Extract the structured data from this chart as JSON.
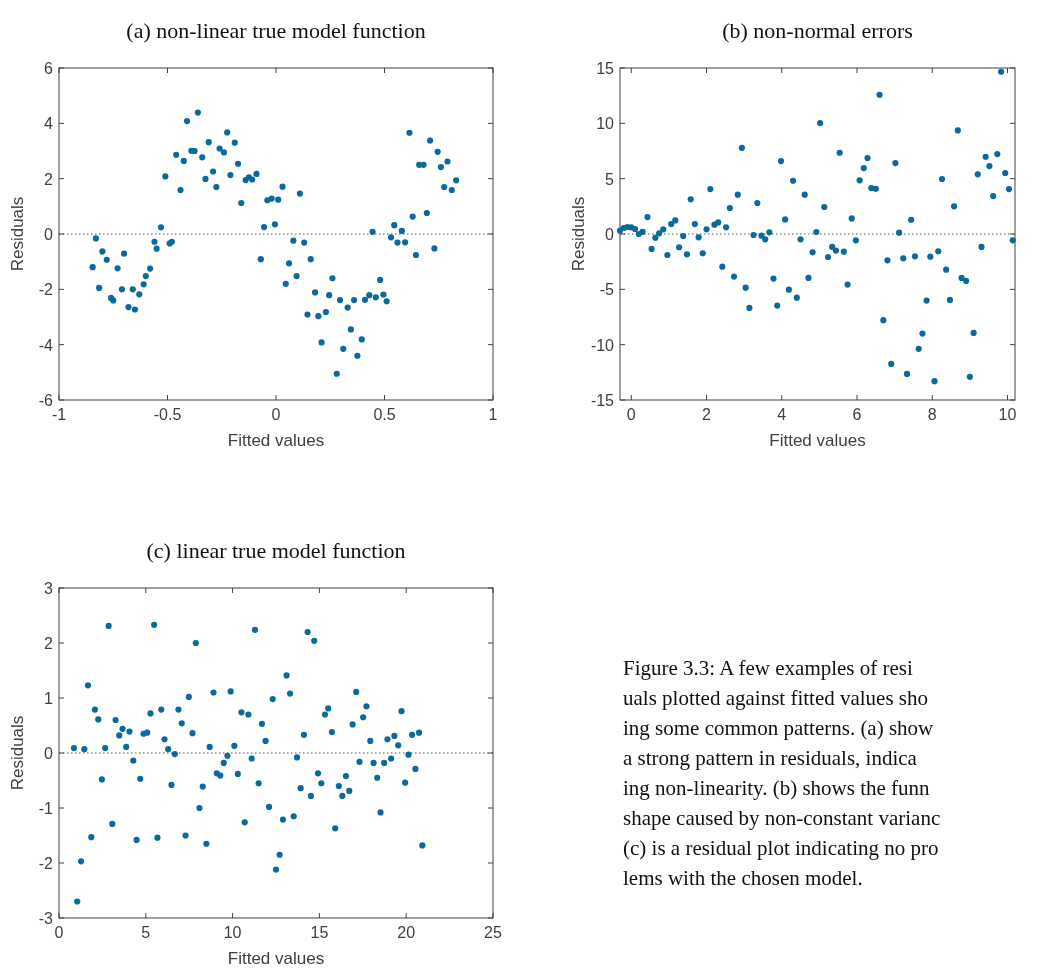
{
  "chart_data": [
    {
      "type": "scatter",
      "title": "(a) non-linear true model function",
      "xlabel": "Fitted values",
      "ylabel": "Residuals",
      "color": "#0b6a9a",
      "marker": "circle",
      "xlim": [
        -1,
        1
      ],
      "ylim": [
        -6,
        6
      ],
      "xticks": [
        -1,
        -0.5,
        0,
        0.5,
        1
      ],
      "yticks": [
        -6,
        -4,
        -2,
        0,
        2,
        4,
        6
      ],
      "ref_lines": [
        {
          "axis": "y",
          "value": 0,
          "line_style": "dotted",
          "color": "#555555"
        }
      ],
      "x": [
        -0.845,
        -0.83,
        -0.815,
        -0.8,
        -0.78,
        -0.76,
        -0.75,
        -0.73,
        -0.71,
        -0.7,
        -0.68,
        -0.66,
        -0.65,
        -0.63,
        -0.61,
        -0.6,
        -0.58,
        -0.56,
        -0.55,
        -0.53,
        -0.51,
        -0.49,
        -0.48,
        -0.46,
        -0.44,
        -0.425,
        -0.41,
        -0.39,
        -0.375,
        -0.36,
        -0.34,
        -0.325,
        -0.31,
        -0.29,
        -0.275,
        -0.26,
        -0.24,
        -0.225,
        -0.21,
        -0.19,
        -0.175,
        -0.16,
        -0.14,
        -0.125,
        -0.11,
        -0.09,
        -0.07,
        -0.055,
        -0.04,
        -0.02,
        -0.005,
        0.01,
        0.03,
        0.045,
        0.06,
        0.08,
        0.095,
        0.11,
        0.13,
        0.145,
        0.16,
        0.18,
        0.195,
        0.21,
        0.23,
        0.245,
        0.26,
        0.28,
        0.295,
        0.31,
        0.33,
        0.345,
        0.36,
        0.375,
        0.395,
        0.41,
        0.43,
        0.445,
        0.46,
        0.48,
        0.495,
        0.51,
        0.53,
        0.545,
        0.56,
        0.58,
        0.595,
        0.615,
        0.63,
        0.645,
        0.66,
        0.68,
        0.695,
        0.71,
        0.73,
        0.745,
        0.76,
        0.775,
        0.79,
        0.81,
        0.83
      ],
      "values": [
        -1.2,
        -0.16,
        -1.95,
        -0.63,
        -0.93,
        -2.31,
        -2.4,
        -1.24,
        -2.0,
        -0.71,
        -2.64,
        -2.0,
        -2.73,
        -2.18,
        -1.82,
        -1.52,
        -1.25,
        -0.28,
        -0.53,
        0.24,
        2.08,
        -0.34,
        -0.28,
        2.86,
        1.59,
        2.64,
        4.08,
        3.01,
        3.0,
        4.39,
        2.77,
        1.99,
        3.32,
        2.26,
        1.7,
        3.09,
        2.95,
        3.67,
        2.13,
        3.3,
        2.54,
        1.12,
        1.95,
        2.05,
        1.97,
        2.17,
        -0.91,
        0.25,
        1.22,
        1.28,
        0.35,
        1.24,
        1.71,
        -1.8,
        -1.06,
        -0.24,
        -1.52,
        1.46,
        -0.31,
        -2.91,
        -0.91,
        -2.11,
        -2.97,
        -3.92,
        -2.82,
        -2.21,
        -1.6,
        -5.05,
        -2.39,
        -4.15,
        -2.66,
        -3.45,
        -2.39,
        -4.4,
        -3.81,
        -2.38,
        -2.21,
        0.08,
        -2.29,
        -1.66,
        -2.19,
        -2.43,
        -0.12,
        0.32,
        -0.31,
        0.11,
        -0.3,
        3.66,
        0.63,
        -0.76,
        2.5,
        2.5,
        0.76,
        3.38,
        -0.52,
        2.97,
        2.42,
        1.7,
        2.62,
        1.59,
        1.94
      ]
    },
    {
      "type": "scatter",
      "title": "(b) non-normal errors",
      "xlabel": "Fitted values",
      "ylabel": "Residuals",
      "color": "#0b6a9a",
      "marker": "circle",
      "xlim": [
        -0.3,
        10.2
      ],
      "ylim": [
        -15,
        15
      ],
      "xticks": [
        0,
        2,
        4,
        6,
        8,
        10
      ],
      "yticks": [
        -15,
        -10,
        -5,
        0,
        5,
        10,
        15
      ],
      "ref_lines": [
        {
          "axis": "y",
          "value": 0,
          "line_style": "dotted",
          "color": "#555555"
        }
      ],
      "x": [
        -0.3,
        -0.2,
        -0.1,
        0.0,
        0.1,
        0.2,
        0.3,
        0.43,
        0.54,
        0.64,
        0.74,
        0.85,
        0.96,
        1.06,
        1.17,
        1.27,
        1.38,
        1.48,
        1.58,
        1.69,
        1.79,
        1.9,
        2.0,
        2.1,
        2.21,
        2.31,
        2.42,
        2.52,
        2.62,
        2.73,
        2.83,
        2.94,
        3.04,
        3.14,
        3.25,
        3.35,
        3.46,
        3.56,
        3.67,
        3.78,
        3.88,
        3.98,
        4.09,
        4.19,
        4.3,
        4.4,
        4.5,
        4.61,
        4.71,
        4.82,
        4.92,
        5.02,
        5.13,
        5.23,
        5.34,
        5.44,
        5.54,
        5.65,
        5.75,
        5.86,
        5.97,
        6.07,
        6.18,
        6.28,
        6.38,
        6.5,
        6.6,
        6.7,
        6.81,
        6.91,
        7.02,
        7.12,
        7.23,
        7.33,
        7.44,
        7.54,
        7.64,
        7.74,
        7.85,
        7.95,
        8.06,
        8.16,
        8.26,
        8.37,
        8.47,
        8.58,
        8.68,
        8.78,
        8.9,
        9.0,
        9.1,
        9.21,
        9.31,
        9.42,
        9.52,
        9.62,
        9.73,
        9.83,
        9.94,
        10.04,
        10.14
      ],
      "values": [
        0.3,
        0.54,
        0.63,
        0.6,
        0.45,
        0.0,
        0.2,
        1.53,
        -1.35,
        -0.33,
        0.06,
        0.42,
        -1.9,
        0.9,
        1.23,
        -1.2,
        -0.18,
        -1.84,
        3.13,
        0.9,
        -0.3,
        -1.75,
        0.42,
        4.06,
        0.84,
        1.05,
        -2.95,
        0.6,
        2.35,
        -3.85,
        3.55,
        7.79,
        -4.85,
        -6.68,
        -0.09,
        2.8,
        -0.15,
        -0.48,
        0.15,
        -4.03,
        -6.47,
        6.59,
        1.32,
        -5.03,
        4.81,
        -5.75,
        -0.48,
        3.55,
        -3.97,
        -1.66,
        0.18,
        10.02,
        2.44,
        -2.08,
        -1.17,
        -1.5,
        7.34,
        -1.6,
        -4.57,
        1.41,
        -0.57,
        4.85,
        5.96,
        6.86,
        4.15,
        4.09,
        12.58,
        -7.79,
        -2.38,
        -11.74,
        6.41,
        0.12,
        -2.2,
        -12.64,
        1.29,
        -2.02,
        -10.38,
        -9.0,
        -6.02,
        -2.05,
        -13.3,
        -1.56,
        4.97,
        -3.22,
        -5.96,
        2.5,
        9.36,
        -3.97,
        -4.24,
        -12.91,
        -8.94,
        5.39,
        -1.17,
        6.98,
        6.14,
        3.43,
        7.22,
        14.66,
        5.51,
        4.06,
        -0.57
      ]
    },
    {
      "type": "scatter",
      "title": "(c) linear true model function",
      "xlabel": "Fitted values",
      "ylabel": "Residuals",
      "color": "#0b6a9a",
      "marker": "circle",
      "xlim": [
        0,
        25
      ],
      "ylim": [
        -3,
        3
      ],
      "xticks": [
        0,
        5,
        10,
        15,
        20,
        25
      ],
      "yticks": [
        -3,
        -2,
        -1,
        0,
        1,
        2,
        3
      ],
      "ref_lines": [
        {
          "axis": "y",
          "value": 0,
          "line_style": "dotted",
          "color": "#555555"
        }
      ],
      "x": [
        0.86,
        1.05,
        1.27,
        1.46,
        1.67,
        1.86,
        2.07,
        2.26,
        2.47,
        2.66,
        2.86,
        3.07,
        3.26,
        3.47,
        3.66,
        3.87,
        4.06,
        4.28,
        4.47,
        4.68,
        4.87,
        5.08,
        5.27,
        5.48,
        5.67,
        5.89,
        6.08,
        6.29,
        6.48,
        6.67,
        6.88,
        7.07,
        7.29,
        7.48,
        7.69,
        7.88,
        8.09,
        8.28,
        8.49,
        8.68,
        8.9,
        9.09,
        9.29,
        9.49,
        9.7,
        9.89,
        10.1,
        10.3,
        10.51,
        10.7,
        10.91,
        11.1,
        11.29,
        11.5,
        11.69,
        11.9,
        12.1,
        12.31,
        12.5,
        12.71,
        12.9,
        13.11,
        13.31,
        13.52,
        13.71,
        13.92,
        14.11,
        14.32,
        14.51,
        14.7,
        14.92,
        15.11,
        15.32,
        15.51,
        15.72,
        15.91,
        16.12,
        16.32,
        16.53,
        16.72,
        16.91,
        17.12,
        17.31,
        17.52,
        17.71,
        17.93,
        18.12,
        18.33,
        18.52,
        18.73,
        18.92,
        19.13,
        19.32,
        19.54,
        19.73,
        19.94,
        20.13,
        20.34,
        20.53,
        20.74,
        20.93
      ],
      "values": [
        0.09,
        -2.7,
        -1.97,
        0.07,
        1.23,
        -1.53,
        0.79,
        0.61,
        -0.48,
        0.09,
        2.31,
        -1.29,
        0.6,
        0.32,
        0.44,
        0.11,
        0.39,
        -0.14,
        -1.58,
        -0.47,
        0.35,
        0.37,
        0.72,
        2.33,
        -1.54,
        0.79,
        0.25,
        0.07,
        -0.58,
        -0.02,
        0.79,
        0.54,
        -1.5,
        1.02,
        0.36,
        2.0,
        -1.0,
        -0.61,
        -1.65,
        0.11,
        1.1,
        -0.37,
        -0.41,
        -0.18,
        -0.05,
        1.12,
        0.13,
        -0.38,
        0.74,
        -1.26,
        0.7,
        -0.1,
        2.24,
        -0.55,
        0.53,
        0.22,
        -0.98,
        0.98,
        -2.12,
        -1.85,
        -1.21,
        1.41,
        1.08,
        -1.15,
        -0.08,
        -0.64,
        0.33,
        2.2,
        -0.78,
        2.04,
        -0.37,
        -0.55,
        0.7,
        0.81,
        0.38,
        -1.37,
        -0.6,
        -0.78,
        -0.42,
        -0.69,
        0.52,
        1.11,
        -0.16,
        0.65,
        0.85,
        0.22,
        -0.18,
        -0.45,
        -1.08,
        -0.18,
        0.25,
        -0.1,
        0.31,
        0.14,
        0.76,
        -0.54,
        -0.03,
        0.33,
        -0.29,
        0.37,
        -1.68
      ]
    },
    {
      "type": "other",
      "annotations": [
        "Figure 3.3: A few examples of resi",
        "uals plotted against fitted values sho",
        "ing some common patterns. (a) show",
        "a strong pattern in residuals, indica",
        "ing non-linearity. (b) shows the funn",
        "shape caused by non-constant varianc",
        "(c) is a residual plot indicating no pro",
        "lems with the chosen model."
      ]
    }
  ]
}
